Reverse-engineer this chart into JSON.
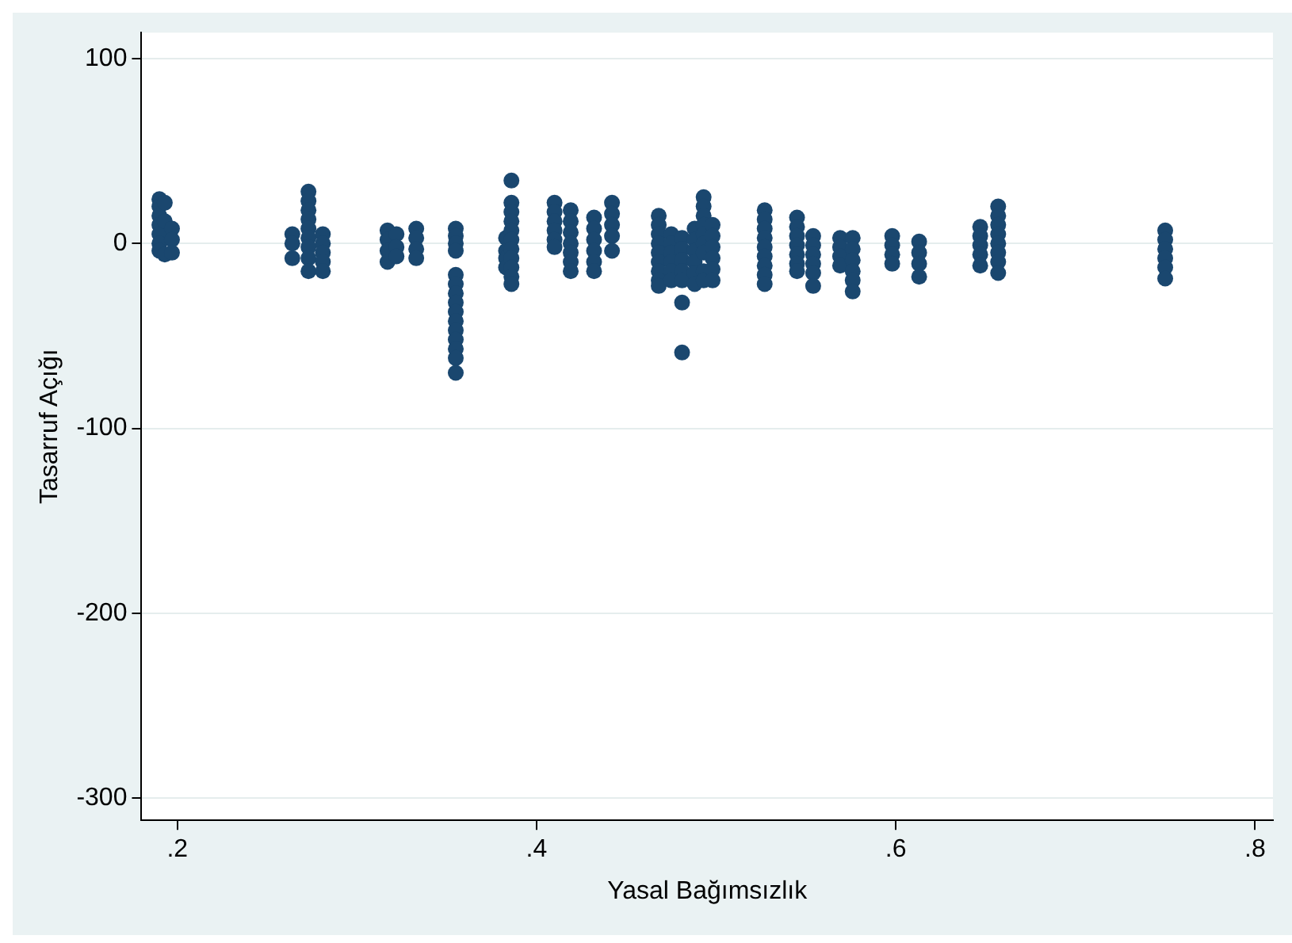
{
  "chart_data": {
    "type": "scatter",
    "xlabel": "Yasal Bağımsızlık",
    "ylabel": "Tasarruf Açığı",
    "xlim": [
      0.18,
      0.81
    ],
    "ylim": [
      -312,
      114
    ],
    "xticks": [
      {
        "value": 0.2,
        "label": ".2"
      },
      {
        "value": 0.4,
        "label": ".4"
      },
      {
        "value": 0.6,
        "label": ".6"
      },
      {
        "value": 0.8,
        "label": ".8"
      }
    ],
    "yticks": [
      100,
      0,
      -100,
      -200,
      -300
    ],
    "grid": "y",
    "marker": "circle",
    "legend": false,
    "series": [
      {
        "color": "#1a476f",
        "x": [
          0.19,
          0.19,
          0.19,
          0.19,
          0.19,
          0.19,
          0.19,
          0.193,
          0.193,
          0.193,
          0.197,
          0.197,
          0.197,
          0.264,
          0.264,
          0.264,
          0.273,
          0.273,
          0.273,
          0.273,
          0.273,
          0.273,
          0.273,
          0.273,
          0.273,
          0.281,
          0.281,
          0.281,
          0.281,
          0.281,
          0.317,
          0.317,
          0.317,
          0.317,
          0.322,
          0.322,
          0.322,
          0.333,
          0.333,
          0.333,
          0.333,
          0.355,
          0.355,
          0.355,
          0.355,
          0.355,
          0.355,
          0.355,
          0.355,
          0.355,
          0.355,
          0.355,
          0.355,
          0.355,
          0.355,
          0.355,
          0.383,
          0.383,
          0.383,
          0.383,
          0.386,
          0.386,
          0.386,
          0.386,
          0.386,
          0.386,
          0.386,
          0.386,
          0.386,
          0.386,
          0.386,
          0.41,
          0.41,
          0.41,
          0.41,
          0.41,
          0.41,
          0.419,
          0.419,
          0.419,
          0.419,
          0.419,
          0.419,
          0.419,
          0.432,
          0.432,
          0.432,
          0.432,
          0.432,
          0.432,
          0.442,
          0.442,
          0.442,
          0.442,
          0.442,
          0.468,
          0.468,
          0.468,
          0.468,
          0.468,
          0.468,
          0.468,
          0.468,
          0.468,
          0.475,
          0.475,
          0.475,
          0.475,
          0.475,
          0.475,
          0.481,
          0.481,
          0.481,
          0.481,
          0.481,
          0.481,
          0.481,
          0.488,
          0.488,
          0.488,
          0.488,
          0.488,
          0.488,
          0.493,
          0.493,
          0.493,
          0.493,
          0.493,
          0.493,
          0.493,
          0.493,
          0.493,
          0.498,
          0.498,
          0.498,
          0.498,
          0.498,
          0.498,
          0.527,
          0.527,
          0.527,
          0.527,
          0.527,
          0.527,
          0.527,
          0.527,
          0.527,
          0.545,
          0.545,
          0.545,
          0.545,
          0.545,
          0.545,
          0.545,
          0.554,
          0.554,
          0.554,
          0.554,
          0.554,
          0.554,
          0.569,
          0.569,
          0.569,
          0.569,
          0.576,
          0.576,
          0.576,
          0.576,
          0.576,
          0.576,
          0.598,
          0.598,
          0.598,
          0.598,
          0.613,
          0.613,
          0.613,
          0.613,
          0.647,
          0.647,
          0.647,
          0.647,
          0.647,
          0.657,
          0.657,
          0.657,
          0.657,
          0.657,
          0.657,
          0.657,
          0.657,
          0.75,
          0.75,
          0.75,
          0.75,
          0.75,
          0.75
        ],
        "values": [
          24,
          20,
          15,
          10,
          5,
          0,
          -4,
          22,
          12,
          -6,
          8,
          2,
          -5,
          5,
          0,
          -8,
          28,
          23,
          18,
          13,
          8,
          3,
          -2,
          -8,
          -15,
          5,
          0,
          -5,
          -10,
          -15,
          7,
          2,
          -4,
          -10,
          5,
          -2,
          -7,
          8,
          3,
          -3,
          -8,
          8,
          4,
          0,
          -4,
          -17,
          -22,
          -27,
          -32,
          -37,
          -42,
          -47,
          -52,
          -57,
          -62,
          -70,
          3,
          -4,
          -8,
          -13,
          34,
          22,
          17,
          12,
          7,
          2,
          -3,
          -8,
          -13,
          -18,
          -22,
          22,
          17,
          12,
          7,
          2,
          -2,
          18,
          12,
          6,
          0,
          -5,
          -10,
          -15,
          14,
          8,
          2,
          -4,
          -10,
          -15,
          22,
          16,
          10,
          4,
          -4,
          15,
          10,
          5,
          0,
          -5,
          -10,
          -15,
          -20,
          -23,
          5,
          0,
          -5,
          -10,
          -15,
          -20,
          3,
          -3,
          -9,
          -15,
          -20,
          -32,
          -59,
          8,
          2,
          -4,
          -10,
          -16,
          -22,
          25,
          20,
          15,
          10,
          5,
          0,
          -5,
          -15,
          -20,
          10,
          4,
          -2,
          -8,
          -14,
          -20,
          18,
          13,
          8,
          3,
          -2,
          -7,
          -12,
          -17,
          -22,
          14,
          9,
          4,
          -1,
          -6,
          -11,
          -15,
          4,
          -1,
          -6,
          -11,
          -16,
          -23,
          3,
          -2,
          -7,
          -12,
          3,
          -3,
          -9,
          -15,
          -20,
          -26,
          4,
          -1,
          -6,
          -11,
          1,
          -5,
          -11,
          -18,
          9,
          4,
          -1,
          -6,
          -12,
          20,
          15,
          10,
          5,
          0,
          -5,
          -10,
          -16,
          7,
          2,
          -3,
          -8,
          -13,
          -19
        ]
      }
    ]
  }
}
